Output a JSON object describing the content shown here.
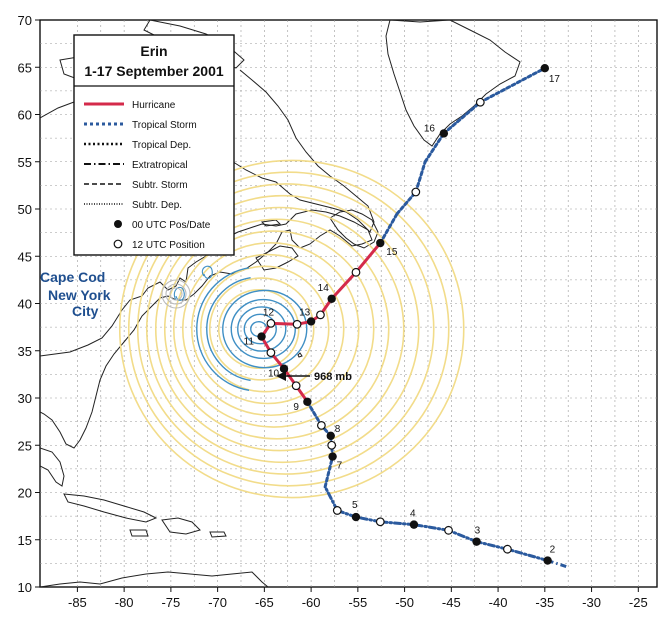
{
  "axes": {
    "lon_ticks": [
      "-85",
      "-80",
      "-75",
      "-70",
      "-65",
      "-60",
      "-55",
      "-50",
      "-45",
      "-40",
      "-35",
      "-30",
      "-25"
    ],
    "lat_ticks": [
      "10",
      "15",
      "20",
      "25",
      "30",
      "35",
      "40",
      "45",
      "50",
      "55",
      "60",
      "65",
      "70"
    ],
    "lon_range": [
      -89,
      -23
    ],
    "lat_range": [
      10,
      70
    ]
  },
  "legend": {
    "title_line1": "Erin",
    "title_line2": "1-17 September 2001",
    "items": [
      {
        "label": "Hurricane",
        "style": "hurricane"
      },
      {
        "label": "Tropical Storm",
        "style": "tropical-storm"
      },
      {
        "label": "Tropical Dep.",
        "style": "tropical-dep"
      },
      {
        "label": "Extratropical",
        "style": "extratropical"
      },
      {
        "label": "Subtr. Storm",
        "style": "subtr-storm"
      },
      {
        "label": "Subtr. Dep.",
        "style": "subtr-dep"
      },
      {
        "label": "00 UTC Pos/Date",
        "style": "filled-dot"
      },
      {
        "label": "12 UTC Position",
        "style": "open-dot"
      }
    ]
  },
  "places": {
    "cape_cod": "Cape Cod",
    "new_york_line1": "New York",
    "new_york_line2": "City"
  },
  "pressure_label": "968 mb",
  "colors": {
    "hurricane": "#d42a4a",
    "tropical_storm": "#2b5a9e",
    "swell_yellow": "#f2dc8a",
    "swell_blue": "#3f8fc4",
    "land": "#ffffff",
    "grid": "#999999"
  },
  "track": [
    {
      "lon": -34.7,
      "lat": 12.8,
      "day": "2",
      "type": "00"
    },
    {
      "lon": -39.0,
      "lat": 14.0,
      "type": "12"
    },
    {
      "lon": -42.3,
      "lat": 14.8,
      "day": "3",
      "type": "00"
    },
    {
      "lon": -45.3,
      "lat": 16.0,
      "type": "12"
    },
    {
      "lon": -49.0,
      "lat": 16.6,
      "day": "4",
      "type": "00"
    },
    {
      "lon": -52.6,
      "lat": 16.9,
      "type": "12"
    },
    {
      "lon": -55.2,
      "lat": 17.4,
      "day": "5",
      "type": "00"
    },
    {
      "lon": -57.2,
      "lat": 18.1,
      "type": "12"
    },
    {
      "lon": -58.5,
      "lat": 20.6,
      "type": "nodot"
    },
    {
      "lon": -57.7,
      "lat": 23.8,
      "day": "7",
      "type": "00"
    },
    {
      "lon": -57.8,
      "lat": 25.0,
      "type": "12"
    },
    {
      "lon": -57.9,
      "lat": 26.0,
      "day": "8",
      "type": "00"
    },
    {
      "lon": -58.9,
      "lat": 27.1,
      "type": "12"
    },
    {
      "lon": -60.4,
      "lat": 29.6,
      "day": "9",
      "type": "00",
      "seg": "hurricane"
    },
    {
      "lon": -61.6,
      "lat": 31.3,
      "type": "12",
      "seg": "hurricane"
    },
    {
      "lon": -62.9,
      "lat": 33.1,
      "day": "10",
      "type": "00",
      "seg": "hurricane"
    },
    {
      "lon": -64.3,
      "lat": 34.8,
      "type": "12",
      "seg": "hurricane"
    },
    {
      "lon": -65.3,
      "lat": 36.5,
      "day": "11",
      "type": "00",
      "seg": "hurricane"
    },
    {
      "lon": -64.3,
      "lat": 37.9,
      "day": "12",
      "type": "12",
      "seg": "hurricane"
    },
    {
      "lon": -61.5,
      "lat": 37.8,
      "type": "12",
      "seg": "hurricane"
    },
    {
      "lon": -60.0,
      "lat": 38.1,
      "day": "13",
      "type": "00",
      "seg": "hurricane"
    },
    {
      "lon": -59.0,
      "lat": 38.8,
      "type": "12",
      "seg": "hurricane"
    },
    {
      "lon": -57.8,
      "lat": 40.5,
      "day": "14",
      "type": "00",
      "seg": "hurricane"
    },
    {
      "lon": -55.2,
      "lat": 43.3,
      "type": "12",
      "seg": "hurricane"
    },
    {
      "lon": -52.6,
      "lat": 46.4,
      "day": "15",
      "type": "00",
      "seg": "hurricane"
    },
    {
      "lon": -50.8,
      "lat": 49.5,
      "type": "nodot"
    },
    {
      "lon": -48.8,
      "lat": 51.8,
      "type": "12"
    },
    {
      "lon": -47.8,
      "lat": 55.0,
      "type": "nodot"
    },
    {
      "lon": -45.8,
      "lat": 58.0,
      "day": "16",
      "type": "00"
    },
    {
      "lon": -41.9,
      "lat": 61.3,
      "type": "12"
    },
    {
      "lon": -35.0,
      "lat": 64.9,
      "day": "17",
      "type": "00"
    }
  ]
}
